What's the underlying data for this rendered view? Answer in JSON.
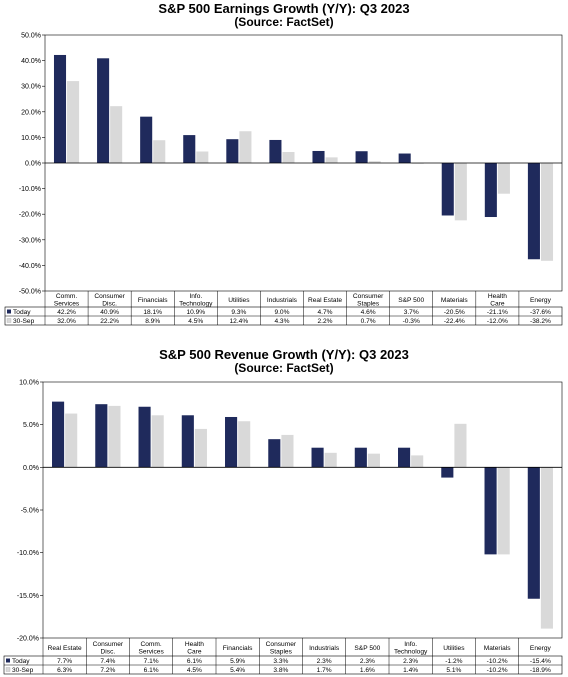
{
  "colors": {
    "today": "#1f2a5c",
    "prior": "#d9d9d9",
    "axis": "#000000"
  },
  "chart_data": [
    {
      "type": "bar",
      "title": "S&P 500 Earnings Growth (Y/Y): Q3 2023",
      "subtitle": "(Source: FactSet)",
      "categories": [
        "Comm. Services",
        "Consumer Disc.",
        "Financials",
        "Info. Technology",
        "Utilities",
        "Industrials",
        "Real Estate",
        "Consumer Staples",
        "S&P 500",
        "Materials",
        "Health Care",
        "Energy"
      ],
      "category_lines": [
        [
          "Comm.",
          "Services"
        ],
        [
          "Consumer",
          "Disc."
        ],
        [
          "Financials"
        ],
        [
          "Info.",
          "Technology"
        ],
        [
          "Utilities"
        ],
        [
          "Industrials"
        ],
        [
          "Real Estate"
        ],
        [
          "Consumer",
          "Staples"
        ],
        [
          "S&P 500"
        ],
        [
          "Materials"
        ],
        [
          "Health",
          "Care"
        ],
        [
          "Energy"
        ]
      ],
      "series": [
        {
          "name": "Today",
          "values": [
            42.2,
            40.9,
            18.1,
            10.9,
            9.3,
            9.0,
            4.7,
            4.6,
            3.7,
            -20.5,
            -21.1,
            -37.6
          ],
          "labels": [
            "42.2%",
            "40.9%",
            "18.1%",
            "10.9%",
            "9.3%",
            "9.0%",
            "4.7%",
            "4.6%",
            "3.7%",
            "-20.5%",
            "-21.1%",
            "-37.6%"
          ]
        },
        {
          "name": "30-Sep",
          "values": [
            32.0,
            22.2,
            8.9,
            4.5,
            12.4,
            4.3,
            2.2,
            0.7,
            -0.3,
            -22.4,
            -12.0,
            -38.2
          ],
          "labels": [
            "32.0%",
            "22.2%",
            "8.9%",
            "4.5%",
            "12.4%",
            "4.3%",
            "2.2%",
            "0.7%",
            "-0.3%",
            "-22.4%",
            "-12.0%",
            "-38.2%"
          ]
        }
      ],
      "ylim": [
        -50,
        50
      ],
      "yticks": [
        50,
        40,
        30,
        20,
        10,
        0,
        -10,
        -20,
        -30,
        -40,
        -50
      ],
      "ytick_labels": [
        "50.0%",
        "40.0%",
        "30.0%",
        "20.0%",
        "10.0%",
        "0.0%",
        "-10.0%",
        "-20.0%",
        "-30.0%",
        "-40.0%",
        "-50.0%"
      ],
      "xlabel": "",
      "ylabel": "",
      "grid": false,
      "legend": "data-table"
    },
    {
      "type": "bar",
      "title": "S&P 500 Revenue Growth (Y/Y): Q3 2023",
      "subtitle": "(Source: FactSet)",
      "categories": [
        "Real Estate",
        "Consumer Disc.",
        "Comm. Services",
        "Health Care",
        "Financials",
        "Consumer Staples",
        "Industrials",
        "S&P 500",
        "Info. Technology",
        "Utilities",
        "Materials",
        "Energy"
      ],
      "category_lines": [
        [
          "Real Estate"
        ],
        [
          "Consumer",
          "Disc."
        ],
        [
          "Comm.",
          "Services"
        ],
        [
          "Health",
          "Care"
        ],
        [
          "Financials"
        ],
        [
          "Consumer",
          "Staples"
        ],
        [
          "Industrials"
        ],
        [
          "S&P 500"
        ],
        [
          "Info.",
          "Technology"
        ],
        [
          "Utilities"
        ],
        [
          "Materials"
        ],
        [
          "Energy"
        ]
      ],
      "series": [
        {
          "name": "Today",
          "values": [
            7.7,
            7.4,
            7.1,
            6.1,
            5.9,
            3.3,
            2.3,
            2.3,
            2.3,
            -1.2,
            -10.2,
            -15.4
          ],
          "labels": [
            "7.7%",
            "7.4%",
            "7.1%",
            "6.1%",
            "5.9%",
            "3.3%",
            "2.3%",
            "2.3%",
            "2.3%",
            "-1.2%",
            "-10.2%",
            "-15.4%"
          ]
        },
        {
          "name": "30-Sep",
          "values": [
            6.3,
            7.2,
            6.1,
            4.5,
            5.4,
            3.8,
            1.7,
            1.6,
            1.4,
            5.1,
            -10.2,
            -18.9
          ],
          "labels": [
            "6.3%",
            "7.2%",
            "6.1%",
            "4.5%",
            "5.4%",
            "3.8%",
            "1.7%",
            "1.6%",
            "1.4%",
            "5.1%",
            "-10.2%",
            "-18.9%"
          ]
        }
      ],
      "ylim": [
        -20,
        10
      ],
      "yticks": [
        10,
        5,
        0,
        -5,
        -10,
        -15,
        -20
      ],
      "ytick_labels": [
        "10.0%",
        "5.0%",
        "0.0%",
        "-5.0%",
        "-10.0%",
        "-15.0%",
        "-20.0%"
      ],
      "xlabel": "",
      "ylabel": "",
      "grid": false,
      "legend": "data-table"
    }
  ]
}
